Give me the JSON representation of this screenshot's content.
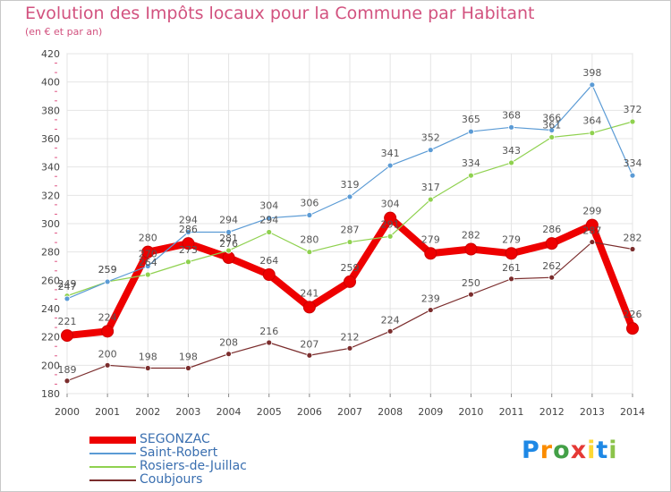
{
  "chart_data": {
    "type": "line",
    "title": "Evolution des Impôts locaux pour la Commune par Habitant",
    "subtitle": "(en € et par an)",
    "xlabel": "",
    "ylabel": "",
    "x": [
      "2000",
      "2001",
      "2002",
      "2003",
      "2004",
      "2005",
      "2006",
      "2007",
      "2008",
      "2009",
      "2010",
      "2011",
      "2012",
      "2013",
      "2014"
    ],
    "ylim": [
      180,
      420
    ],
    "yticks": [
      "180",
      "200",
      "220",
      "240",
      "260",
      "280",
      "300",
      "320",
      "340",
      "360",
      "380",
      "400",
      "420"
    ],
    "grid": true,
    "legend_position": "bottom-left",
    "series": [
      {
        "name": "SEGONZAC",
        "color": "#ee0000",
        "values": [
          221,
          224,
          280,
          286,
          276,
          264,
          241,
          259,
          304,
          279,
          282,
          279,
          286,
          299,
          226
        ]
      },
      {
        "name": "Saint-Robert",
        "color": "#5b9bd5",
        "values": [
          247,
          259,
          270,
          294,
          294,
          304,
          306,
          319,
          341,
          352,
          365,
          368,
          366,
          398,
          334
        ]
      },
      {
        "name": "Rosiers-de-Juillac",
        "color": "#8fd14f",
        "values": [
          249,
          259,
          264,
          273,
          281,
          294,
          280,
          287,
          291,
          317,
          334,
          343,
          361,
          364,
          372
        ]
      },
      {
        "name": "Coubjours",
        "color": "#7b2d2d",
        "values": [
          189,
          200,
          198,
          198,
          208,
          216,
          207,
          212,
          224,
          239,
          250,
          261,
          262,
          287,
          282
        ]
      }
    ]
  },
  "logo": {
    "letters": [
      "P",
      "r",
      "o",
      "x",
      "i",
      "t",
      "i"
    ],
    "colors": [
      "#1e88e5",
      "#fb8c00",
      "#43a047",
      "#e53935",
      "#fdd835",
      "#1e88e5",
      "#8bc34a"
    ]
  }
}
